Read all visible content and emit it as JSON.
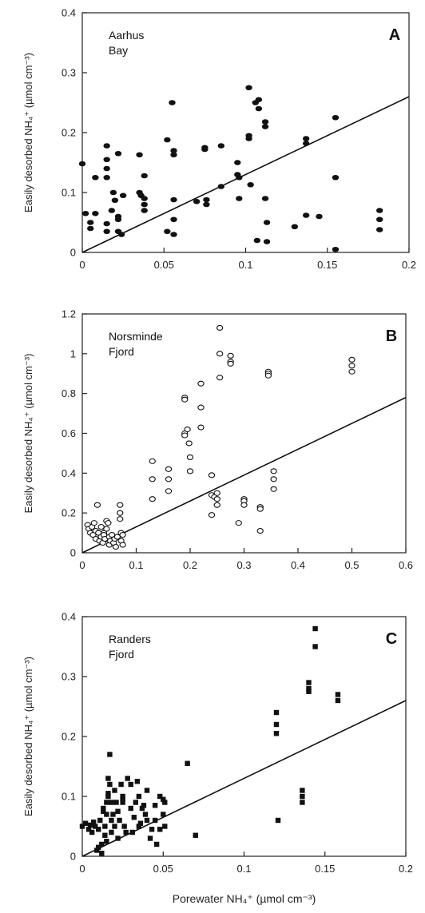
{
  "chart_data": [
    {
      "type": "scatter",
      "panel_label": "A",
      "annotation": [
        "Aarhus",
        "Bay"
      ],
      "ylabel": "Easily desorbed NH₄⁺ (µmol cm⁻³)",
      "xlabel": "",
      "xlim": [
        0,
        0.2
      ],
      "ylim": [
        0,
        0.4
      ],
      "xticks": [
        0,
        0.05,
        0.1,
        0.15,
        0.2
      ],
      "yticks": [
        0,
        0.1,
        0.2,
        0.3,
        0.4
      ],
      "xtick_labels": [
        "0",
        "0.05",
        "0.1",
        "0.15",
        "0.2"
      ],
      "ytick_labels": [
        "0",
        "0.1",
        "0.2",
        "0.3",
        "0.4"
      ],
      "marker": "filled-circle",
      "marker_color": "#111111",
      "fit_line": [
        [
          0,
          0
        ],
        [
          0.2,
          0.26
        ]
      ],
      "points": [
        [
          0.0,
          0.148
        ],
        [
          0.002,
          0.065
        ],
        [
          0.005,
          0.05
        ],
        [
          0.005,
          0.04
        ],
        [
          0.008,
          0.125
        ],
        [
          0.008,
          0.065
        ],
        [
          0.015,
          0.178
        ],
        [
          0.015,
          0.155
        ],
        [
          0.015,
          0.14
        ],
        [
          0.015,
          0.125
        ],
        [
          0.015,
          0.048
        ],
        [
          0.015,
          0.035
        ],
        [
          0.018,
          0.07
        ],
        [
          0.019,
          0.1
        ],
        [
          0.02,
          0.087
        ],
        [
          0.022,
          0.165
        ],
        [
          0.022,
          0.06
        ],
        [
          0.022,
          0.055
        ],
        [
          0.022,
          0.035
        ],
        [
          0.024,
          0.03
        ],
        [
          0.025,
          0.095
        ],
        [
          0.035,
          0.163
        ],
        [
          0.035,
          0.1
        ],
        [
          0.036,
          0.095
        ],
        [
          0.038,
          0.128
        ],
        [
          0.038,
          0.09
        ],
        [
          0.038,
          0.08
        ],
        [
          0.038,
          0.07
        ],
        [
          0.052,
          0.188
        ],
        [
          0.052,
          0.035
        ],
        [
          0.055,
          0.25
        ],
        [
          0.056,
          0.17
        ],
        [
          0.056,
          0.163
        ],
        [
          0.056,
          0.088
        ],
        [
          0.056,
          0.055
        ],
        [
          0.056,
          0.03
        ],
        [
          0.07,
          0.085
        ],
        [
          0.075,
          0.175
        ],
        [
          0.075,
          0.172
        ],
        [
          0.076,
          0.088
        ],
        [
          0.076,
          0.08
        ],
        [
          0.085,
          0.178
        ],
        [
          0.085,
          0.11
        ],
        [
          0.095,
          0.15
        ],
        [
          0.095,
          0.13
        ],
        [
          0.096,
          0.125
        ],
        [
          0.096,
          0.09
        ],
        [
          0.102,
          0.275
        ],
        [
          0.102,
          0.195
        ],
        [
          0.102,
          0.19
        ],
        [
          0.103,
          0.113
        ],
        [
          0.106,
          0.25
        ],
        [
          0.107,
          0.02
        ],
        [
          0.108,
          0.255
        ],
        [
          0.108,
          0.24
        ],
        [
          0.112,
          0.218
        ],
        [
          0.112,
          0.21
        ],
        [
          0.112,
          0.09
        ],
        [
          0.113,
          0.05
        ],
        [
          0.113,
          0.018
        ],
        [
          0.13,
          0.043
        ],
        [
          0.137,
          0.19
        ],
        [
          0.137,
          0.182
        ],
        [
          0.137,
          0.062
        ],
        [
          0.145,
          0.06
        ],
        [
          0.155,
          0.225
        ],
        [
          0.155,
          0.125
        ],
        [
          0.155,
          0.005
        ],
        [
          0.182,
          0.07
        ],
        [
          0.182,
          0.055
        ],
        [
          0.182,
          0.038
        ]
      ]
    },
    {
      "type": "scatter",
      "panel_label": "B",
      "annotation": [
        "Norsminde",
        "Fjord"
      ],
      "ylabel": "Easily desorbed NH₄⁺ (µmol cm⁻³)",
      "xlabel": "",
      "xlim": [
        0,
        0.6
      ],
      "ylim": [
        0,
        1.2
      ],
      "xticks": [
        0,
        0.1,
        0.2,
        0.3,
        0.4,
        0.5,
        0.6
      ],
      "yticks": [
        0,
        0.2,
        0.4,
        0.6,
        0.8,
        1.0,
        1.2
      ],
      "xtick_labels": [
        "0",
        "0.1",
        "0.2",
        "0.3",
        "0.4",
        "0.5",
        "0.6"
      ],
      "ytick_labels": [
        "0",
        "0.2",
        "0.4",
        "0.6",
        "0.8",
        "1",
        "1.2"
      ],
      "marker": "open-circle",
      "marker_color": "#111111",
      "fit_line": [
        [
          0,
          0
        ],
        [
          0.6,
          0.78
        ]
      ],
      "points": [
        [
          0.01,
          0.14
        ],
        [
          0.012,
          0.12
        ],
        [
          0.015,
          0.1
        ],
        [
          0.018,
          0.13
        ],
        [
          0.02,
          0.09
        ],
        [
          0.022,
          0.15
        ],
        [
          0.025,
          0.11
        ],
        [
          0.025,
          0.07
        ],
        [
          0.028,
          0.24
        ],
        [
          0.03,
          0.1
        ],
        [
          0.032,
          0.06
        ],
        [
          0.035,
          0.13
        ],
        [
          0.035,
          0.08
        ],
        [
          0.038,
          0.05
        ],
        [
          0.04,
          0.1
        ],
        [
          0.04,
          0.09
        ],
        [
          0.042,
          0.07
        ],
        [
          0.045,
          0.16
        ],
        [
          0.045,
          0.12
        ],
        [
          0.048,
          0.15
        ],
        [
          0.05,
          0.08
        ],
        [
          0.05,
          0.04
        ],
        [
          0.052,
          0.06
        ],
        [
          0.055,
          0.09
        ],
        [
          0.058,
          0.05
        ],
        [
          0.06,
          0.07
        ],
        [
          0.062,
          0.03
        ],
        [
          0.065,
          0.08
        ],
        [
          0.07,
          0.24
        ],
        [
          0.07,
          0.2
        ],
        [
          0.07,
          0.17
        ],
        [
          0.072,
          0.1
        ],
        [
          0.072,
          0.06
        ],
        [
          0.075,
          0.09
        ],
        [
          0.075,
          0.04
        ],
        [
          0.13,
          0.46
        ],
        [
          0.13,
          0.37
        ],
        [
          0.13,
          0.27
        ],
        [
          0.16,
          0.42
        ],
        [
          0.16,
          0.37
        ],
        [
          0.16,
          0.31
        ],
        [
          0.19,
          0.78
        ],
        [
          0.19,
          0.77
        ],
        [
          0.19,
          0.6
        ],
        [
          0.19,
          0.59
        ],
        [
          0.195,
          0.62
        ],
        [
          0.198,
          0.55
        ],
        [
          0.2,
          0.48
        ],
        [
          0.2,
          0.41
        ],
        [
          0.22,
          0.85
        ],
        [
          0.22,
          0.73
        ],
        [
          0.22,
          0.63
        ],
        [
          0.24,
          0.39
        ],
        [
          0.24,
          0.29
        ],
        [
          0.24,
          0.19
        ],
        [
          0.245,
          0.28
        ],
        [
          0.25,
          0.3
        ],
        [
          0.25,
          0.27
        ],
        [
          0.25,
          0.24
        ],
        [
          0.255,
          1.13
        ],
        [
          0.255,
          1.0
        ],
        [
          0.255,
          0.88
        ],
        [
          0.275,
          0.99
        ],
        [
          0.275,
          0.96
        ],
        [
          0.275,
          0.95
        ],
        [
          0.29,
          0.15
        ],
        [
          0.3,
          0.27
        ],
        [
          0.3,
          0.26
        ],
        [
          0.3,
          0.24
        ],
        [
          0.33,
          0.23
        ],
        [
          0.33,
          0.22
        ],
        [
          0.33,
          0.11
        ],
        [
          0.345,
          0.91
        ],
        [
          0.345,
          0.9
        ],
        [
          0.345,
          0.89
        ],
        [
          0.355,
          0.41
        ],
        [
          0.355,
          0.37
        ],
        [
          0.355,
          0.32
        ],
        [
          0.5,
          0.97
        ],
        [
          0.5,
          0.94
        ],
        [
          0.5,
          0.91
        ]
      ]
    },
    {
      "type": "scatter",
      "panel_label": "C",
      "annotation": [
        "Randers",
        "Fjord"
      ],
      "ylabel": "Easily desorbed NH₄⁺ (µmol cm⁻³)",
      "xlabel": "Porewater NH₄⁺ (µmol cm⁻³)",
      "xlim": [
        0,
        0.2
      ],
      "ylim": [
        0,
        0.4
      ],
      "xticks": [
        0,
        0.05,
        0.1,
        0.15,
        0.2
      ],
      "yticks": [
        0,
        0.1,
        0.2,
        0.3,
        0.4
      ],
      "xtick_labels": [
        "0",
        "0.05",
        "0.1",
        "0.15",
        "0.2"
      ],
      "ytick_labels": [
        "0",
        "0.1",
        "0.2",
        "0.3",
        "0.4"
      ],
      "marker": "filled-square",
      "marker_color": "#111111",
      "fit_line": [
        [
          0,
          0
        ],
        [
          0.2,
          0.26
        ]
      ],
      "points": [
        [
          0.0,
          0.05
        ],
        [
          0.002,
          0.055
        ],
        [
          0.004,
          0.045
        ],
        [
          0.005,
          0.052
        ],
        [
          0.006,
          0.04
        ],
        [
          0.007,
          0.057
        ],
        [
          0.008,
          0.05
        ],
        [
          0.009,
          0.01
        ],
        [
          0.01,
          0.015
        ],
        [
          0.01,
          0.045
        ],
        [
          0.011,
          0.06
        ],
        [
          0.012,
          0.005
        ],
        [
          0.012,
          0.02
        ],
        [
          0.013,
          0.075
        ],
        [
          0.013,
          0.08
        ],
        [
          0.014,
          0.05
        ],
        [
          0.014,
          0.035
        ],
        [
          0.015,
          0.09
        ],
        [
          0.015,
          0.07
        ],
        [
          0.015,
          0.025
        ],
        [
          0.016,
          0.13
        ],
        [
          0.016,
          0.105
        ],
        [
          0.016,
          0.1
        ],
        [
          0.017,
          0.17
        ],
        [
          0.017,
          0.12
        ],
        [
          0.018,
          0.09
        ],
        [
          0.018,
          0.06
        ],
        [
          0.018,
          0.04
        ],
        [
          0.019,
          0.07
        ],
        [
          0.02,
          0.11
        ],
        [
          0.02,
          0.05
        ],
        [
          0.021,
          0.09
        ],
        [
          0.022,
          0.075
        ],
        [
          0.022,
          0.03
        ],
        [
          0.023,
          0.06
        ],
        [
          0.024,
          0.12
        ],
        [
          0.025,
          0.1
        ],
        [
          0.025,
          0.095
        ],
        [
          0.025,
          0.09
        ],
        [
          0.026,
          0.05
        ],
        [
          0.027,
          0.04
        ],
        [
          0.028,
          0.13
        ],
        [
          0.03,
          0.08
        ],
        [
          0.03,
          0.12
        ],
        [
          0.031,
          0.04
        ],
        [
          0.032,
          0.065
        ],
        [
          0.033,
          0.09
        ],
        [
          0.034,
          0.125
        ],
        [
          0.035,
          0.1
        ],
        [
          0.035,
          0.05
        ],
        [
          0.036,
          0.055
        ],
        [
          0.037,
          0.08
        ],
        [
          0.038,
          0.085
        ],
        [
          0.039,
          0.07
        ],
        [
          0.04,
          0.11
        ],
        [
          0.04,
          0.06
        ],
        [
          0.042,
          0.03
        ],
        [
          0.043,
          0.045
        ],
        [
          0.045,
          0.085
        ],
        [
          0.045,
          0.06
        ],
        [
          0.046,
          0.02
        ],
        [
          0.048,
          0.1
        ],
        [
          0.048,
          0.045
        ],
        [
          0.05,
          0.095
        ],
        [
          0.05,
          0.07
        ],
        [
          0.051,
          0.09
        ],
        [
          0.051,
          0.05
        ],
        [
          0.065,
          0.155
        ],
        [
          0.07,
          0.035
        ],
        [
          0.12,
          0.24
        ],
        [
          0.12,
          0.22
        ],
        [
          0.12,
          0.205
        ],
        [
          0.121,
          0.06
        ],
        [
          0.136,
          0.11
        ],
        [
          0.136,
          0.1
        ],
        [
          0.136,
          0.09
        ],
        [
          0.14,
          0.29
        ],
        [
          0.14,
          0.28
        ],
        [
          0.14,
          0.275
        ],
        [
          0.144,
          0.38
        ],
        [
          0.144,
          0.35
        ],
        [
          0.158,
          0.27
        ],
        [
          0.158,
          0.26
        ]
      ]
    }
  ]
}
